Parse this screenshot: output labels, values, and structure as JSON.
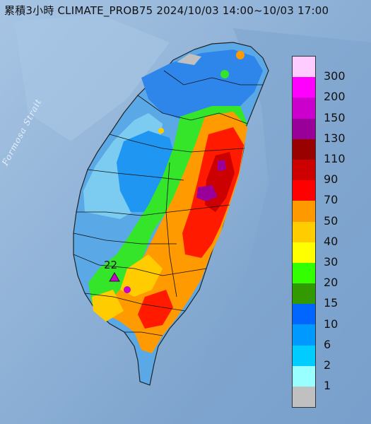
{
  "title": "累積3小時 CLIMATE_PROB75 2024/10/03 14:00~10/03 17:00",
  "strait_label": "Formosa Strait",
  "station_label": "22",
  "legend": {
    "labels": [
      "300",
      "200",
      "150",
      "130",
      "110",
      "90",
      "70",
      "50",
      "40",
      "30",
      "20",
      "15",
      "10",
      "6",
      "2",
      "1"
    ],
    "colors": [
      "#ffccff",
      "#ff00ff",
      "#cc00cc",
      "#990099",
      "#990000",
      "#cc0000",
      "#ff0000",
      "#ff9900",
      "#ffcc00",
      "#ffff00",
      "#33ff00",
      "#339900",
      "#0066ff",
      "#0099ff",
      "#00ccff",
      "#99ffff",
      "#c0c0c0"
    ]
  },
  "colors": {
    "sea": "#8fb4d8",
    "terrain_light": "#7fb0dc",
    "rain_low": "#1e90ff",
    "rain_mid": "#ffcc00",
    "rain_high": "#ff0000"
  }
}
